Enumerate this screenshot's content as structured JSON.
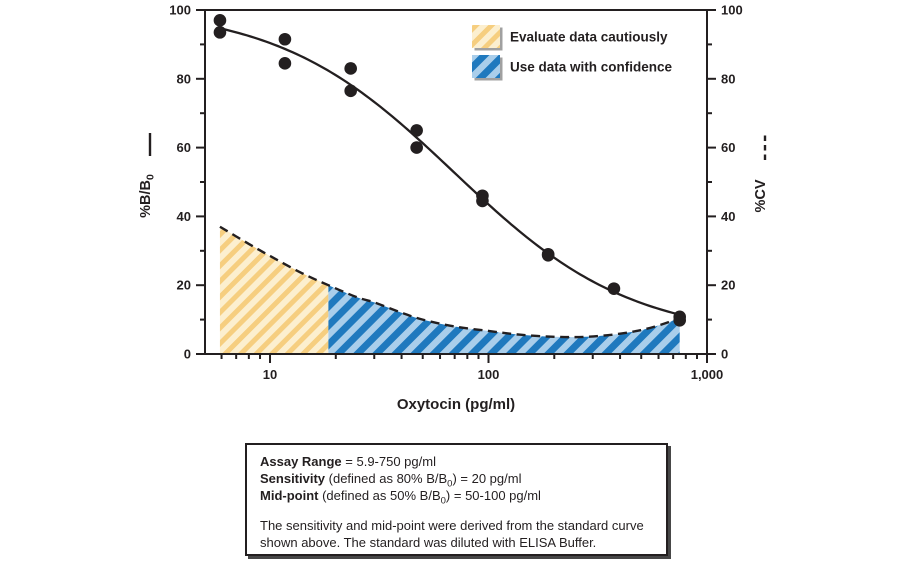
{
  "chart_data": {
    "type": "scatter",
    "title": "",
    "xlabel": "Oxytocin (pg/ml)",
    "x_axis": {
      "scale": "log",
      "range": [
        5.04,
        1000
      ],
      "major_ticks": [
        10,
        100,
        1000
      ],
      "major_tick_labels": [
        "10",
        "100",
        "1,000"
      ]
    },
    "y_left": {
      "label_pre": "%B/B",
      "label_sub": "0",
      "line_style": "solid",
      "range": [
        0,
        100
      ],
      "major_ticks": [
        0,
        20,
        40,
        60,
        80,
        100
      ],
      "minor_ticks": [
        10,
        30,
        50,
        70,
        90
      ]
    },
    "y_right": {
      "label_pre": "%CV",
      "label_sub": "",
      "line_style": "dashed",
      "range": [
        0,
        100
      ],
      "major_ticks": [
        0,
        20,
        40,
        60,
        80,
        100
      ],
      "minor_ticks": [
        10,
        30,
        50,
        70,
        90
      ]
    },
    "series": [
      {
        "name": "standard-points",
        "type": "scatter",
        "axis": "left",
        "points": [
          [
            5.9,
            97
          ],
          [
            5.9,
            93.5
          ],
          [
            11.7,
            91.5
          ],
          [
            11.7,
            84.5
          ],
          [
            23.4,
            83
          ],
          [
            23.4,
            76.5
          ],
          [
            46.9,
            65
          ],
          [
            46.9,
            60
          ],
          [
            93.8,
            46
          ],
          [
            93.8,
            44.5
          ],
          [
            187.5,
            29
          ],
          [
            187.5,
            28.7
          ],
          [
            375,
            19
          ],
          [
            750,
            10.8
          ],
          [
            750,
            9.8
          ]
        ]
      },
      {
        "name": "standard-curve-fit",
        "type": "line",
        "style": "solid",
        "axis": "left",
        "fit_4pl": {
          "a": 101,
          "b": 1.077,
          "c": 69.7,
          "d": 4.5
        },
        "x_range": [
          5.9,
          750
        ]
      },
      {
        "name": "%CV",
        "type": "line",
        "style": "dashed",
        "axis": "right",
        "points": [
          [
            5.9,
            37
          ],
          [
            8,
            32
          ],
          [
            10,
            28.5
          ],
          [
            14,
            23.5
          ],
          [
            18.5,
            20
          ],
          [
            25,
            16.5
          ],
          [
            30,
            15
          ],
          [
            40,
            12
          ],
          [
            50,
            10
          ],
          [
            70,
            8
          ],
          [
            100,
            6.7
          ],
          [
            140,
            5.6
          ],
          [
            200,
            5
          ],
          [
            280,
            5
          ],
          [
            400,
            5.9
          ],
          [
            550,
            7.6
          ],
          [
            750,
            10.4
          ]
        ]
      }
    ],
    "regions": [
      {
        "name": "evaluate-cautiously",
        "x_from": 5.9,
        "x_to": 18.5,
        "pattern": "hatch-yellow",
        "bg": "#fcefcf",
        "stripe": "#f6ce7f"
      },
      {
        "name": "use-with-confidence",
        "x_from": 18.5,
        "x_to": 750,
        "pattern": "hatch-blue",
        "bg": "#a9ceeb",
        "stripe": "#1f79be"
      }
    ],
    "legend": {
      "position": "top-right",
      "items": [
        {
          "label": "Evaluate data cautiously",
          "pattern": "hatch-yellow"
        },
        {
          "label": "Use data with confidence",
          "pattern": "hatch-blue"
        }
      ]
    },
    "ink_color": "#231f20"
  },
  "info_box": {
    "lines": [
      {
        "bold": "Assay Range",
        "mid": " = 5.9-750 pg/ml",
        "sub": "",
        "post": ""
      },
      {
        "bold": "Sensitivity",
        "mid": " (defined as 80% B/B",
        "sub": "0",
        "post": ") = 20 pg/ml"
      },
      {
        "bold": "Mid-point",
        "mid": " (defined as 50% B/B",
        "sub": "0",
        "post": ") = 50-100 pg/ml"
      }
    ],
    "note_line1": "The sensitivity and mid-point were derived from the standard curve",
    "note_line2": "shown above. The standard was diluted with ELISA Buffer."
  }
}
